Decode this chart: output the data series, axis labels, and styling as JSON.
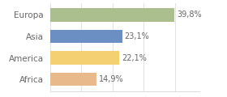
{
  "categories": [
    "Europa",
    "Asia",
    "America",
    "Africa"
  ],
  "values": [
    39.8,
    23.1,
    22.1,
    14.9
  ],
  "labels": [
    "39,8%",
    "23,1%",
    "22,1%",
    "14,9%"
  ],
  "bar_colors": [
    "#abbe8d",
    "#6b8fc2",
    "#f5d072",
    "#e8b98a"
  ],
  "background_color": "#ffffff",
  "xlim": [
    0,
    48
  ],
  "bar_height": 0.62,
  "label_fontsize": 7.0,
  "tick_fontsize": 7.5,
  "grid_color": "#dddddd",
  "text_color": "#666666"
}
